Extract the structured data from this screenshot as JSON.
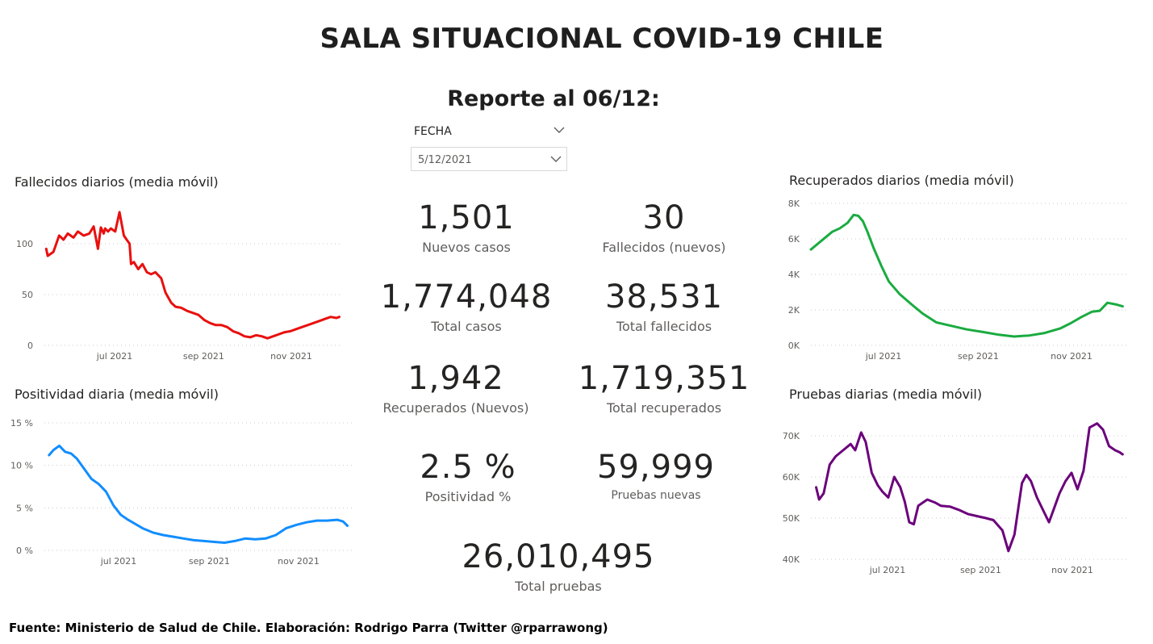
{
  "header": {
    "title": "SALA SITUACIONAL COVID-19 CHILE",
    "subtitle": "Reporte al 06/12:"
  },
  "slicer": {
    "label": "FECHA",
    "value": "5/12/2021"
  },
  "kpis": {
    "nuevos_casos": {
      "value": "1,501",
      "label": "Nuevos casos"
    },
    "fallecidos_nuevos": {
      "value": "30",
      "label": "Fallecidos (nuevos)"
    },
    "total_casos": {
      "value": "1,774,048",
      "label": "Total casos"
    },
    "total_fallecidos": {
      "value": "38,531",
      "label": "Total fallecidos"
    },
    "recuperados_nuevos": {
      "value": "1,942",
      "label": "Recuperados (Nuevos)"
    },
    "total_recuperados": {
      "value": "1,719,351",
      "label": "Total recuperados"
    },
    "positividad": {
      "value": "2.5 %",
      "label": "Positividad %"
    },
    "pruebas_nuevas": {
      "value": "59,999",
      "label": "Pruebas nuevas"
    },
    "total_pruebas": {
      "value": "26,010,495",
      "label": "Total pruebas"
    }
  },
  "footer": "Fuente: Ministerio de Salud de Chile. Elaboración: Rodrigo Parra (Twitter @rparrawong)",
  "chart_data": [
    {
      "id": "fallecidos",
      "type": "line",
      "title": "Fallecidos diarios (media móvil)",
      "color": "#e8100e",
      "x_ticks": [
        "jul 2021",
        "sep 2021",
        "nov 2021"
      ],
      "y_ticks": [
        "0",
        "50",
        "100"
      ],
      "ylim": [
        0,
        130
      ],
      "grid": true,
      "series": [
        {
          "x": [
            "2021-05-15",
            "2021-05-16",
            "2021-05-20",
            "2021-05-24",
            "2021-05-27",
            "2021-05-30",
            "2021-06-03",
            "2021-06-06",
            "2021-06-10",
            "2021-06-14",
            "2021-06-17",
            "2021-06-20",
            "2021-06-22",
            "2021-06-24",
            "2021-06-25",
            "2021-06-27",
            "2021-06-29",
            "2021-07-02",
            "2021-07-05",
            "2021-07-08",
            "2021-07-10",
            "2021-07-12",
            "2021-07-13",
            "2021-07-15",
            "2021-07-18",
            "2021-07-21",
            "2021-07-24",
            "2021-07-27",
            "2021-07-30",
            "2021-08-03",
            "2021-08-06",
            "2021-08-10",
            "2021-08-13",
            "2021-08-17",
            "2021-08-21",
            "2021-08-25",
            "2021-08-29",
            "2021-09-02",
            "2021-09-06",
            "2021-09-10",
            "2021-09-14",
            "2021-09-18",
            "2021-09-22",
            "2021-09-26",
            "2021-09-30",
            "2021-10-04",
            "2021-10-08",
            "2021-10-12",
            "2021-10-16",
            "2021-10-20",
            "2021-10-24",
            "2021-10-28",
            "2021-11-01",
            "2021-11-05",
            "2021-11-09",
            "2021-11-13",
            "2021-11-17",
            "2021-11-21",
            "2021-11-25",
            "2021-11-29",
            "2021-12-03",
            "2021-12-05"
          ],
          "y": [
            95,
            88,
            92,
            108,
            104,
            110,
            106,
            112,
            108,
            110,
            117,
            95,
            116,
            110,
            115,
            112,
            115,
            112,
            131,
            108,
            104,
            100,
            80,
            82,
            75,
            80,
            72,
            70,
            72,
            66,
            52,
            42,
            38,
            37,
            34,
            32,
            30,
            25,
            22,
            20,
            20,
            18,
            14,
            12,
            9,
            8,
            10,
            9,
            7,
            9,
            11,
            13,
            14,
            16,
            18,
            20,
            22,
            24,
            26,
            28,
            27,
            28
          ]
        }
      ]
    },
    {
      "id": "positividad",
      "type": "line",
      "title": "Positividad diaria (media móvil)",
      "color": "#118dff",
      "x_ticks": [
        "jul 2021",
        "sep 2021",
        "nov 2021"
      ],
      "y_ticks": [
        "0 %",
        "5 %",
        "10 %",
        "15 %"
      ],
      "ylim": [
        0,
        15
      ],
      "grid": true,
      "series": [
        {
          "x": [
            "2021-05-15",
            "2021-05-18",
            "2021-05-22",
            "2021-05-26",
            "2021-05-30",
            "2021-06-03",
            "2021-06-08",
            "2021-06-13",
            "2021-06-18",
            "2021-06-23",
            "2021-06-28",
            "2021-07-03",
            "2021-07-08",
            "2021-07-13",
            "2021-07-18",
            "2021-07-25",
            "2021-08-01",
            "2021-08-08",
            "2021-08-15",
            "2021-08-22",
            "2021-08-29",
            "2021-09-05",
            "2021-09-12",
            "2021-09-19",
            "2021-09-26",
            "2021-10-03",
            "2021-10-10",
            "2021-10-17",
            "2021-10-24",
            "2021-10-31",
            "2021-11-07",
            "2021-11-14",
            "2021-11-21",
            "2021-11-28",
            "2021-12-02",
            "2021-12-05"
          ],
          "y": [
            11.2,
            11.8,
            12.3,
            11.6,
            11.4,
            10.8,
            9.6,
            8.4,
            7.8,
            6.9,
            5.3,
            4.2,
            3.6,
            3.1,
            2.6,
            2.1,
            1.8,
            1.6,
            1.4,
            1.2,
            1.1,
            1.0,
            0.9,
            1.1,
            1.4,
            1.3,
            1.4,
            1.8,
            2.6,
            3.0,
            3.3,
            3.5,
            3.5,
            3.6,
            3.4,
            2.9
          ]
        }
      ]
    },
    {
      "id": "recuperados",
      "type": "line",
      "title": "Recuperados diarios (media móvil)",
      "color": "#1aab40",
      "x_ticks": [
        "jul 2021",
        "sep 2021",
        "nov 2021"
      ],
      "y_ticks": [
        "0K",
        "2K",
        "4K",
        "6K",
        "8K"
      ],
      "ylim": [
        0,
        8000
      ],
      "grid": true,
      "series": [
        {
          "x": [
            "2021-05-15",
            "2021-05-22",
            "2021-05-29",
            "2021-06-03",
            "2021-06-08",
            "2021-06-12",
            "2021-06-15",
            "2021-06-18",
            "2021-06-21",
            "2021-06-25",
            "2021-06-30",
            "2021-07-05",
            "2021-07-12",
            "2021-07-20",
            "2021-07-27",
            "2021-08-05",
            "2021-08-15",
            "2021-08-25",
            "2021-09-05",
            "2021-09-15",
            "2021-09-25",
            "2021-10-05",
            "2021-10-15",
            "2021-10-25",
            "2021-11-01",
            "2021-11-08",
            "2021-11-15",
            "2021-11-20",
            "2021-11-25",
            "2021-12-01",
            "2021-12-05"
          ],
          "y": [
            5400,
            5900,
            6400,
            6600,
            6900,
            7350,
            7300,
            7000,
            6400,
            5500,
            4500,
            3600,
            2900,
            2300,
            1800,
            1300,
            1100,
            900,
            750,
            600,
            500,
            560,
            700,
            950,
            1250,
            1600,
            1900,
            1950,
            2400,
            2300,
            2200
          ]
        }
      ]
    },
    {
      "id": "pruebas",
      "type": "line",
      "title": "Pruebas diarias (media móvil)",
      "color": "#6b007b",
      "x_ticks": [
        "jul 2021",
        "sep 2021",
        "nov 2021"
      ],
      "y_ticks": [
        "40K",
        "50K",
        "60K",
        "70K"
      ],
      "ylim": [
        40000,
        75000
      ],
      "grid": true,
      "series": [
        {
          "x": [
            "2021-05-15",
            "2021-05-17",
            "2021-05-20",
            "2021-05-24",
            "2021-05-28",
            "2021-06-02",
            "2021-06-07",
            "2021-06-10",
            "2021-06-14",
            "2021-06-17",
            "2021-06-21",
            "2021-06-25",
            "2021-06-28",
            "2021-07-02",
            "2021-07-06",
            "2021-07-10",
            "2021-07-13",
            "2021-07-16",
            "2021-07-19",
            "2021-07-22",
            "2021-07-24",
            "2021-07-28",
            "2021-08-02",
            "2021-08-06",
            "2021-08-12",
            "2021-08-18",
            "2021-08-24",
            "2021-08-30",
            "2021-09-05",
            "2021-09-10",
            "2021-09-16",
            "2021-09-20",
            "2021-09-24",
            "2021-09-26",
            "2021-09-29",
            "2021-10-02",
            "2021-10-05",
            "2021-10-09",
            "2021-10-13",
            "2021-10-17",
            "2021-10-20",
            "2021-10-24",
            "2021-10-28",
            "2021-11-01",
            "2021-11-05",
            "2021-11-09",
            "2021-11-13",
            "2021-11-18",
            "2021-11-22",
            "2021-11-26",
            "2021-11-30",
            "2021-12-03",
            "2021-12-05"
          ],
          "y": [
            57500,
            54500,
            56000,
            63000,
            65000,
            66500,
            68000,
            66500,
            70800,
            68500,
            61000,
            58000,
            56500,
            55000,
            60000,
            57500,
            54000,
            49000,
            48500,
            53000,
            53500,
            54500,
            53800,
            53000,
            52800,
            52000,
            51000,
            50500,
            50000,
            49500,
            47000,
            42000,
            46000,
            51000,
            58500,
            60500,
            59000,
            55000,
            52000,
            49000,
            52000,
            56000,
            59000,
            61000,
            57000,
            61500,
            72000,
            73000,
            71500,
            67500,
            66500,
            66000,
            65500
          ]
        }
      ]
    }
  ]
}
